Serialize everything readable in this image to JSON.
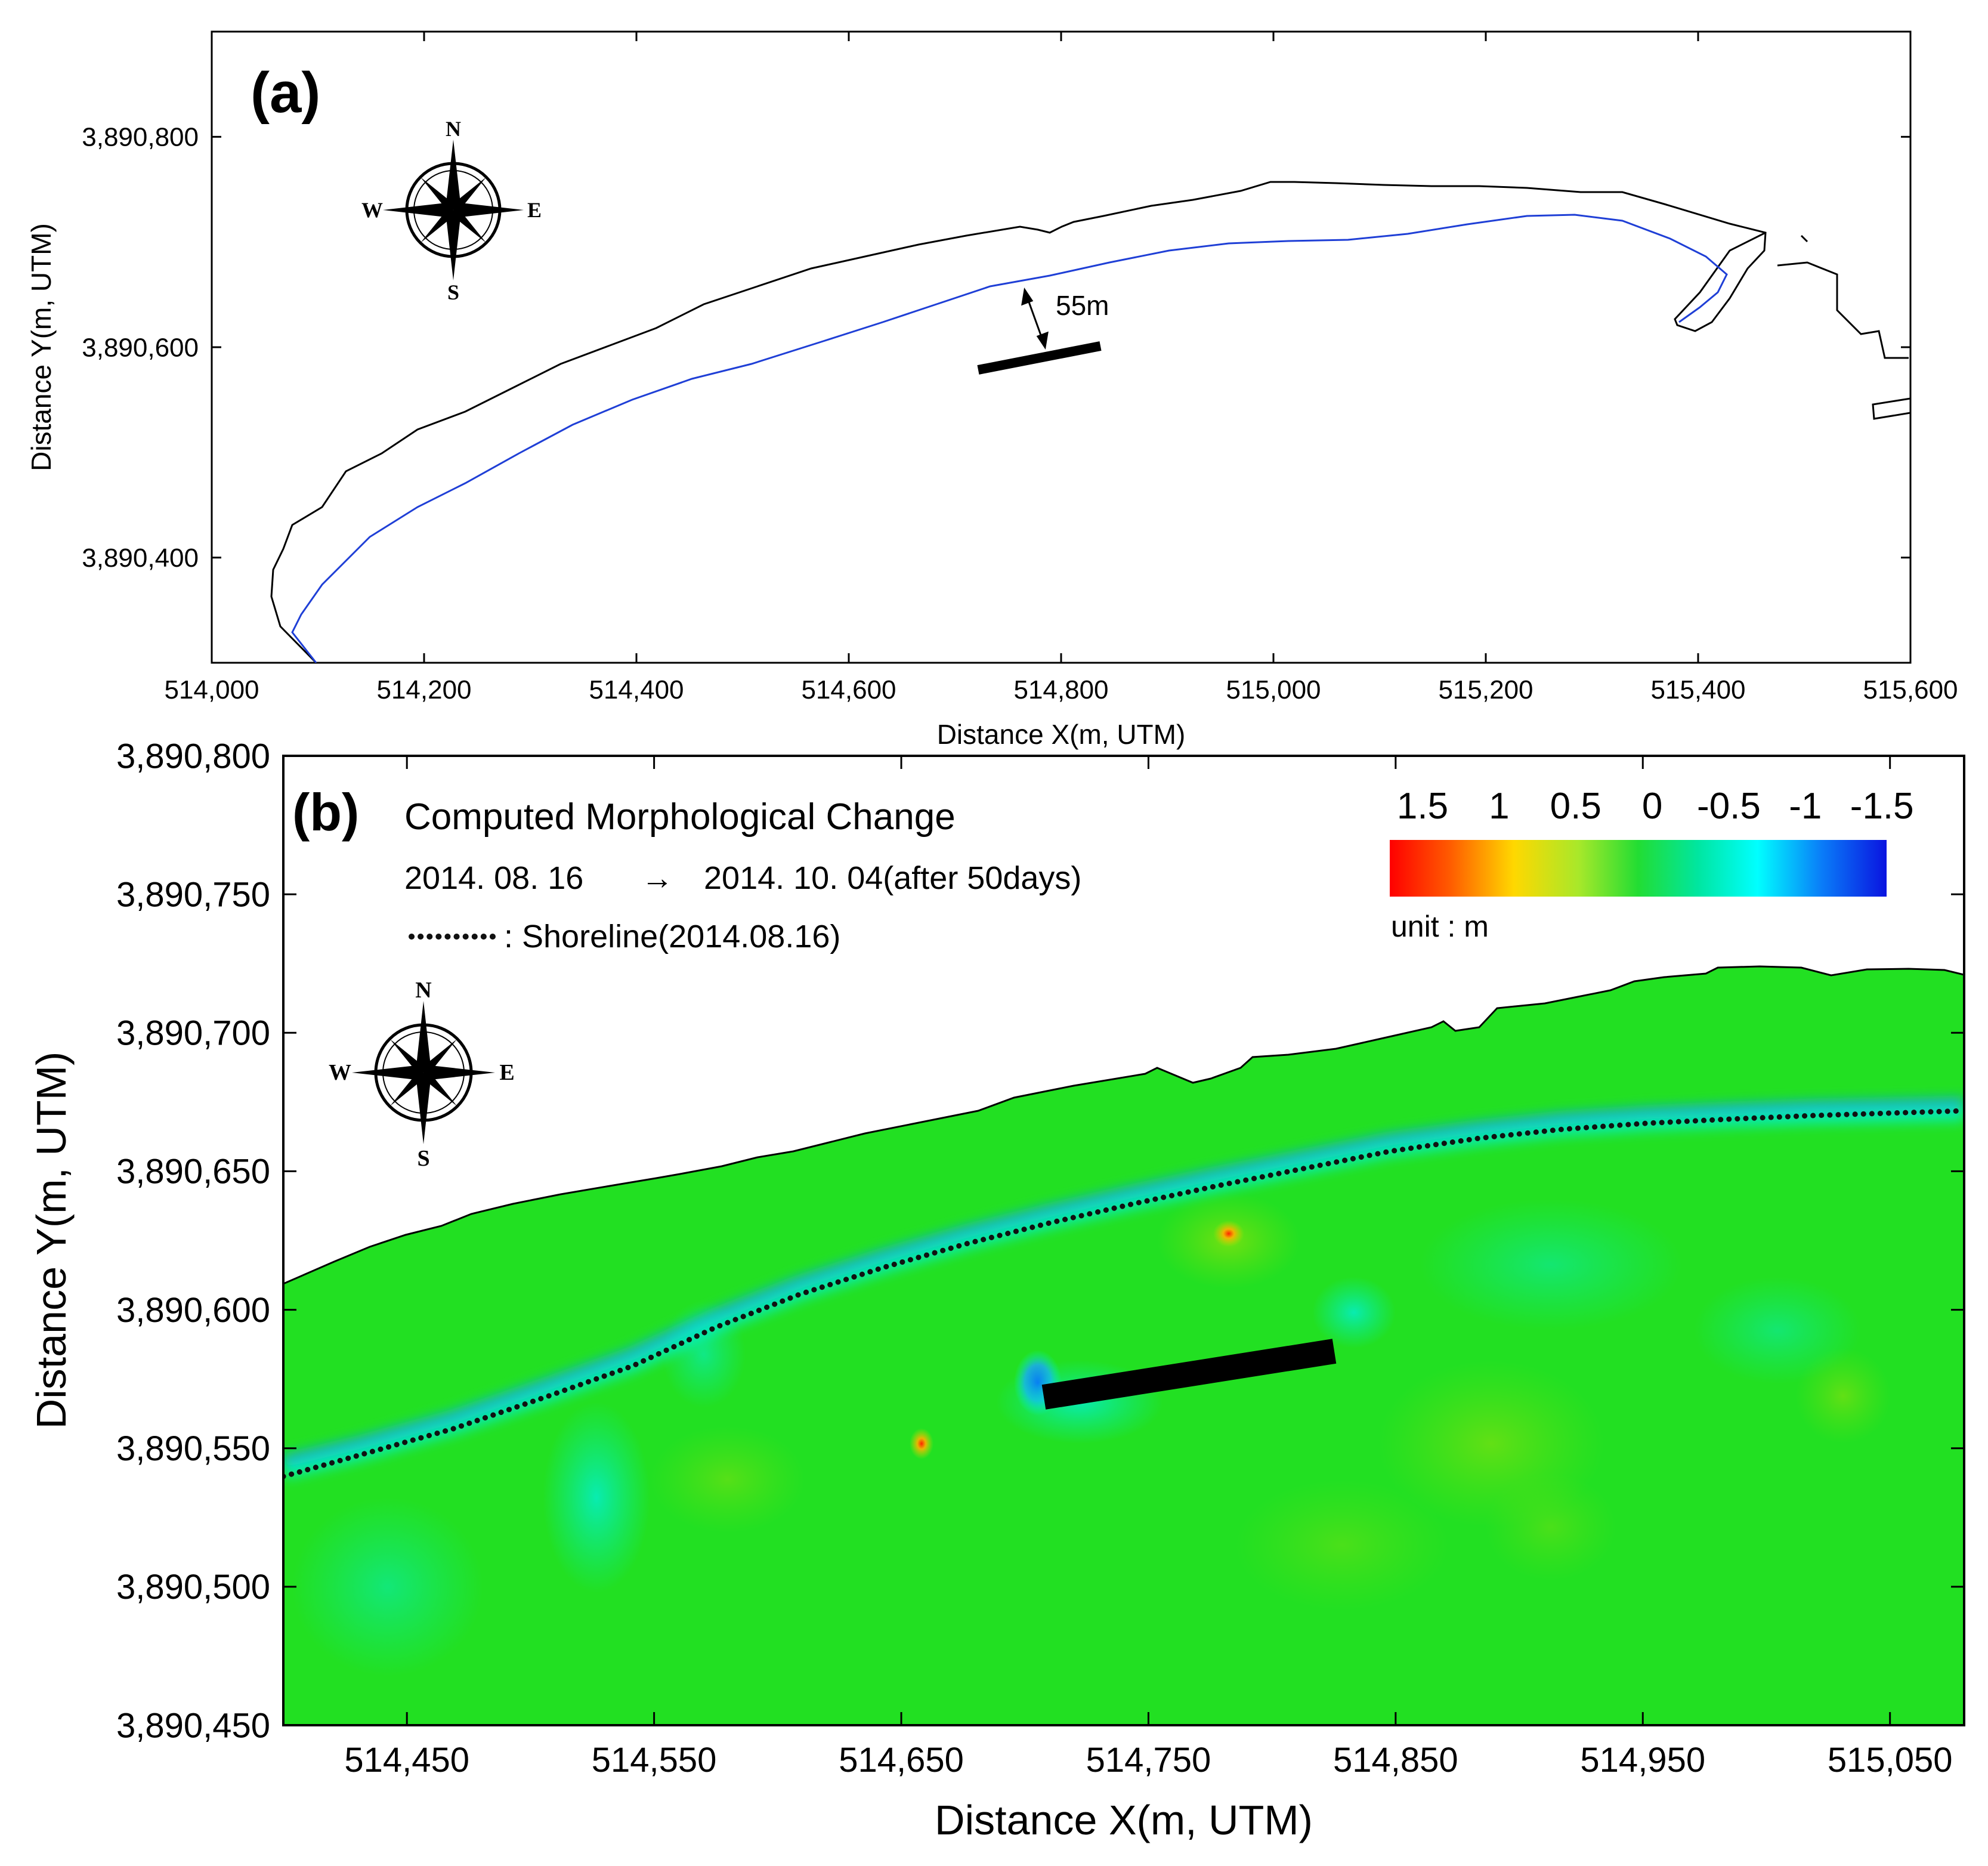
{
  "panel_a": {
    "label": "(a)",
    "xlabel": "Distance X(m, UTM)",
    "ylabel": "Distance Y(m, UTM)",
    "x_range": [
      514000,
      515600
    ],
    "y_range": [
      3890300,
      3890900
    ],
    "x_ticks": [
      "514,000",
      "514,200",
      "514,400",
      "514,600",
      "514,800",
      "515,000",
      "515,200",
      "515,400",
      "515,600"
    ],
    "y_ticks": [
      "3,890,400",
      "3,890,600",
      "3,890,800"
    ],
    "distance_annotation": "55m",
    "compass": {
      "n": "N",
      "s": "S",
      "e": "E",
      "w": "W"
    },
    "colors": {
      "land_boundary": "#000000",
      "shoreline": "#1f3fd6",
      "breakwater": "#000000"
    }
  },
  "panel_b": {
    "label": "(b)",
    "title": "Computed Morphological Change",
    "date_from": "2014. 08. 16",
    "arrow": "→",
    "date_to": "2014. 10. 04(after 50days)",
    "shoreline_legend": ": Shoreline(2014.08.16)",
    "xlabel": "Distance X(m, UTM)",
    "ylabel": "Distance Y(m, UTM)",
    "x_range": [
      514400,
      515080
    ],
    "y_range": [
      3890450,
      3890800
    ],
    "x_ticks": [
      "514,450",
      "514,550",
      "514,650",
      "514,750",
      "514,850",
      "514,950",
      "515,050"
    ],
    "y_ticks": [
      "3,890,450",
      "3,890,500",
      "3,890,550",
      "3,890,600",
      "3,890,650",
      "3,890,700",
      "3,890,750",
      "3,890,800"
    ],
    "colorbar_labels": [
      "1.5",
      "1",
      "0.5",
      "0",
      "-0.5",
      "-1",
      "-1.5"
    ],
    "colorbar_unit": "unit : m",
    "colorbar_range": [
      1.5,
      -1.5
    ],
    "colors": {
      "background_change": "#22e022",
      "erosion": "#1f4fff",
      "accretion": "#ff2a00",
      "shoreline": "#111111"
    },
    "compass": {
      "n": "N",
      "s": "S",
      "e": "E",
      "w": "W"
    }
  }
}
